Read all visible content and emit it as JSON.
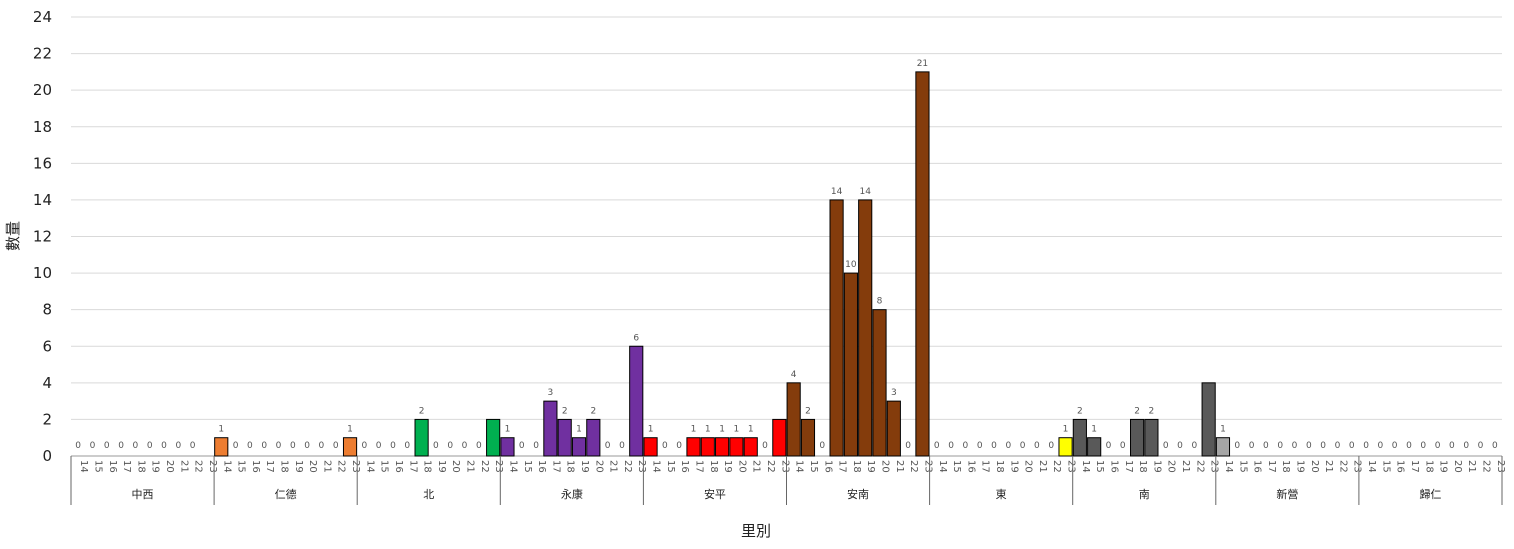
{
  "chart_data": {
    "type": "bar",
    "title": "",
    "xlabel": "里別",
    "ylabel": "數量",
    "ylim": [
      0,
      24
    ],
    "yticks": [
      0,
      2,
      4,
      6,
      8,
      10,
      12,
      14,
      16,
      18,
      20,
      22,
      24
    ],
    "grid": true,
    "legend": "none",
    "periods": [
      "14",
      "15",
      "16",
      "17",
      "18",
      "19",
      "20",
      "21",
      "22",
      "23"
    ],
    "groups": [
      {
        "name": "中西",
        "color": "#ED7D31",
        "values": [
          0,
          0,
          0,
          0,
          0,
          0,
          0,
          0,
          0,
          0
        ],
        "labels": [
          0,
          0,
          0,
          0,
          0,
          0,
          0,
          0,
          0,
          null
        ]
      },
      {
        "name": "仁德",
        "color": "#ED7D31",
        "values": [
          1,
          0,
          0,
          0,
          0,
          0,
          0,
          0,
          0,
          1
        ],
        "labels": [
          1,
          0,
          0,
          0,
          0,
          0,
          0,
          0,
          0,
          1
        ]
      },
      {
        "name": "北",
        "color": "#00B050",
        "values": [
          0,
          0,
          0,
          0,
          2,
          0,
          0,
          0,
          0,
          2
        ],
        "labels": [
          0,
          0,
          0,
          0,
          2,
          0,
          0,
          0,
          0,
          null
        ]
      },
      {
        "name": "永康",
        "color": "#7030A0",
        "values": [
          1,
          0,
          0,
          3,
          2,
          1,
          2,
          0,
          0,
          6
        ],
        "labels": [
          1,
          0,
          0,
          3,
          2,
          1,
          2,
          0,
          0,
          6
        ]
      },
      {
        "name": "安平",
        "color": "#FF0000",
        "values": [
          1,
          0,
          0,
          1,
          1,
          1,
          1,
          1,
          0,
          2
        ],
        "labels": [
          1,
          0,
          0,
          1,
          1,
          1,
          1,
          1,
          0,
          null
        ]
      },
      {
        "name": "安南",
        "color": "#843C0C",
        "values": [
          4,
          2,
          0,
          14,
          10,
          14,
          8,
          3,
          0,
          21
        ],
        "labels": [
          4,
          2,
          0,
          14,
          10,
          14,
          8,
          3,
          0,
          21
        ]
      },
      {
        "name": "東",
        "color": "#FFFF00",
        "values": [
          0,
          0,
          0,
          0,
          0,
          0,
          0,
          0,
          0,
          1
        ],
        "labels": [
          0,
          0,
          0,
          0,
          0,
          0,
          0,
          0,
          0,
          1
        ]
      },
      {
        "name": "南",
        "color": "#595959",
        "values": [
          2,
          1,
          0,
          0,
          2,
          2,
          0,
          0,
          0,
          4
        ],
        "labels": [
          2,
          1,
          0,
          0,
          2,
          2,
          0,
          0,
          0,
          null
        ]
      },
      {
        "name": "新營",
        "color": "#A6A6A6",
        "values": [
          1,
          0,
          0,
          0,
          0,
          0,
          0,
          0,
          0,
          0
        ],
        "labels": [
          1,
          0,
          0,
          0,
          0,
          0,
          0,
          0,
          0,
          0
        ]
      },
      {
        "name": "歸仁",
        "color": "#A6A6A6",
        "values": [
          0,
          0,
          0,
          0,
          0,
          0,
          0,
          0,
          0,
          0
        ],
        "labels": [
          0,
          0,
          0,
          0,
          0,
          0,
          0,
          0,
          0,
          0
        ]
      }
    ]
  }
}
